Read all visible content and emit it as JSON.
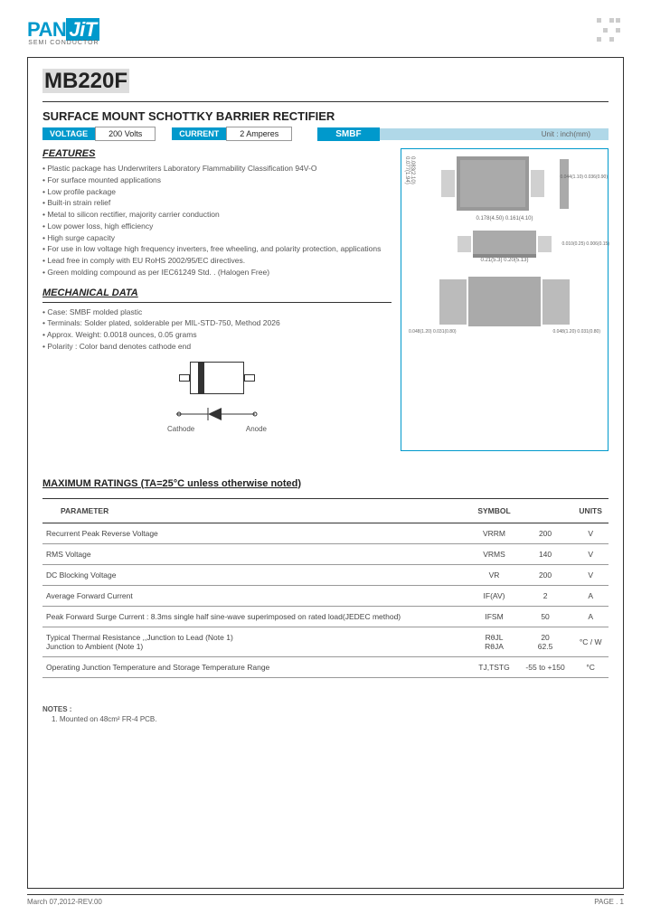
{
  "logo": {
    "part1": "PAN",
    "part2": "JiT",
    "sub": "SEMI\nCONDUCTOR"
  },
  "part_number": "MB220F",
  "title": "SURFACE MOUNT SCHOTTKY BARRIER RECTIFIER",
  "voltage_label": "VOLTAGE",
  "voltage_val": "200 Volts",
  "current_label": "CURRENT",
  "current_val": "2 Amperes",
  "package_label": "SMBF",
  "unit_label": "Unit : inch(mm)",
  "features_head": "FEATURES",
  "features": [
    "Plastic package has Underwriters Laboratory Flammability Classification 94V-O",
    "For surface mounted applications",
    "Low profile package",
    "Built-in strain relief",
    "Metal to silicon rectifier, majority carrier conduction",
    "Low power loss, high efficiency",
    "High surge capacity",
    "For use in low voltage high frequency inverters, free wheeling, and polarity protection, applications",
    "Lead free in comply with EU RoHS 2002/95/EC directives.",
    "Green molding compound as per IEC61249 Std. . (Halogen Free)"
  ],
  "mech_head": "MECHANICAL  DATA",
  "mech": [
    "Case: SMBF molded plastic",
    "Terminals: Solder plated, solderable per MIL-STD-750, Method 2026",
    "Approx. Weight: 0.0018 ounces, 0.05 grams",
    "Polarity : Color band denotes cathode end"
  ],
  "diode": {
    "cathode": "Cathode",
    "anode": "Anode"
  },
  "dimensions": {
    "d1": "0.083(2.10)\n0.077(1.94)",
    "d2": "0.178(4.50)\n0.161(4.10)",
    "d3": "0.145(3.70)\n0.137(3.50)",
    "d4": "0.044(1.10)\n0.036(0.90)",
    "d5": "0.21(5.3)\n0.20(5.13)",
    "d6": "0.010(0.25)\n0.006(0.15)",
    "d7": "0.048(1.20)\n0.031(0.80)",
    "d8": "0.048(1.20)\n0.031(0.80)"
  },
  "max_head": "MAXIMUM  RATINGS (TA=25°C unless otherwise noted)",
  "table": {
    "headers": [
      "PARAMETER",
      "SYMBOL",
      "",
      "UNITS"
    ],
    "rows": [
      {
        "p": "Recurrent Peak Reverse Voltage",
        "s": "VRRM",
        "v": "200",
        "u": "V"
      },
      {
        "p": "RMS Voltage",
        "s": "VRMS",
        "v": "140",
        "u": "V"
      },
      {
        "p": "DC Blocking Voltage",
        "s": "VR",
        "v": "200",
        "u": "V"
      },
      {
        "p": "Average Forward Current",
        "s": "IF(AV)",
        "v": "2",
        "u": "A"
      },
      {
        "p": "Peak Forward Surge Current : 8.3ms single half sine-wave superimposed on rated load(JEDEC method)",
        "s": "IFSM",
        "v": "50",
        "u": "A"
      },
      {
        "p": "Typical Thermal Resistance ,,Junction to Lead (Note 1)\n                                            Junction to Ambient (Note 1)",
        "s": "RθJL\nRθJA",
        "v": "20\n62.5",
        "u": "°C / W"
      },
      {
        "p": "Operating Junction Temperature and Storage Temperature Range",
        "s": "TJ,TSTG",
        "v": "-55 to +150",
        "u": "°C"
      }
    ]
  },
  "notes_head": "NOTES :",
  "notes": [
    "1. Mounted on 48cm² FR-4 PCB."
  ],
  "footer": {
    "date": "March 07,2012-REV.00",
    "page": "PAGE .  1"
  }
}
